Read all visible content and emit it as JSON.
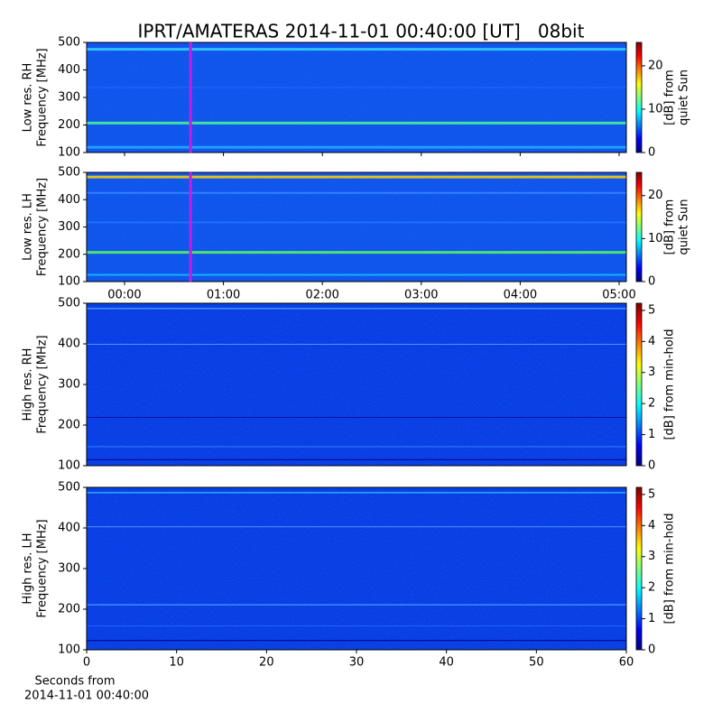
{
  "title": "IPRT/AMATERAS 2014-11-01 00:40:00 [UT]   08bit",
  "time_axis": {
    "xlim": [
      -0.383,
      5.073
    ],
    "xticks": [
      {
        "value": 0,
        "label": "00:00"
      },
      {
        "value": 1,
        "label": "01:00"
      },
      {
        "value": 2,
        "label": "02:00"
      },
      {
        "value": 3,
        "label": "03:00"
      },
      {
        "value": 4,
        "label": "04:00"
      },
      {
        "value": 5,
        "label": "05:00"
      }
    ],
    "marker": 0.667,
    "marker_color": "#c020e0"
  },
  "chart_data": [
    {
      "type": "heatmap",
      "ylabel": [
        "Low res. RH",
        "Frequency [MHz]"
      ],
      "ylim": [
        100,
        500
      ],
      "yticks": [
        100,
        200,
        300,
        400,
        500
      ],
      "colorbar": {
        "label": [
          "[dB] from",
          "quiet Sun"
        ],
        "lim": [
          0,
          25.4
        ],
        "ticks": [
          0,
          10,
          20
        ]
      }
    },
    {
      "type": "heatmap",
      "ylabel": [
        "Low res. LH",
        "Frequency [MHz]"
      ],
      "ylim": [
        100,
        500
      ],
      "yticks": [
        100,
        200,
        300,
        400,
        500
      ],
      "colorbar": {
        "label": [
          "[dB] from",
          "quiet Sun"
        ],
        "lim": [
          0,
          25.4
        ],
        "ticks": [
          0,
          10,
          20
        ]
      }
    },
    {
      "type": "heatmap",
      "ylabel": [
        "High res. RH",
        "Frequency [MHz]"
      ],
      "ylim": [
        100,
        500
      ],
      "yticks": [
        100,
        200,
        300,
        400,
        500
      ],
      "colorbar": {
        "label": [
          "[dB] from min-hold"
        ],
        "lim": [
          0,
          5.23
        ],
        "ticks": [
          0,
          1,
          2,
          3,
          4,
          5
        ]
      }
    },
    {
      "type": "heatmap",
      "ylabel": [
        "High res. LH",
        "Frequency [MHz]"
      ],
      "ylim": [
        100,
        500
      ],
      "yticks": [
        100,
        200,
        300,
        400,
        500
      ],
      "colorbar": {
        "label": [
          "[dB] from min-hold"
        ],
        "lim": [
          0,
          5.23
        ],
        "ticks": [
          0,
          1,
          2,
          3,
          4,
          5
        ]
      },
      "xlim": [
        0,
        60
      ],
      "xticks": [
        0,
        10,
        20,
        30,
        40,
        50,
        60
      ],
      "xlabel": [
        "Seconds from",
        "2014-11-01 00:40:00"
      ]
    }
  ]
}
